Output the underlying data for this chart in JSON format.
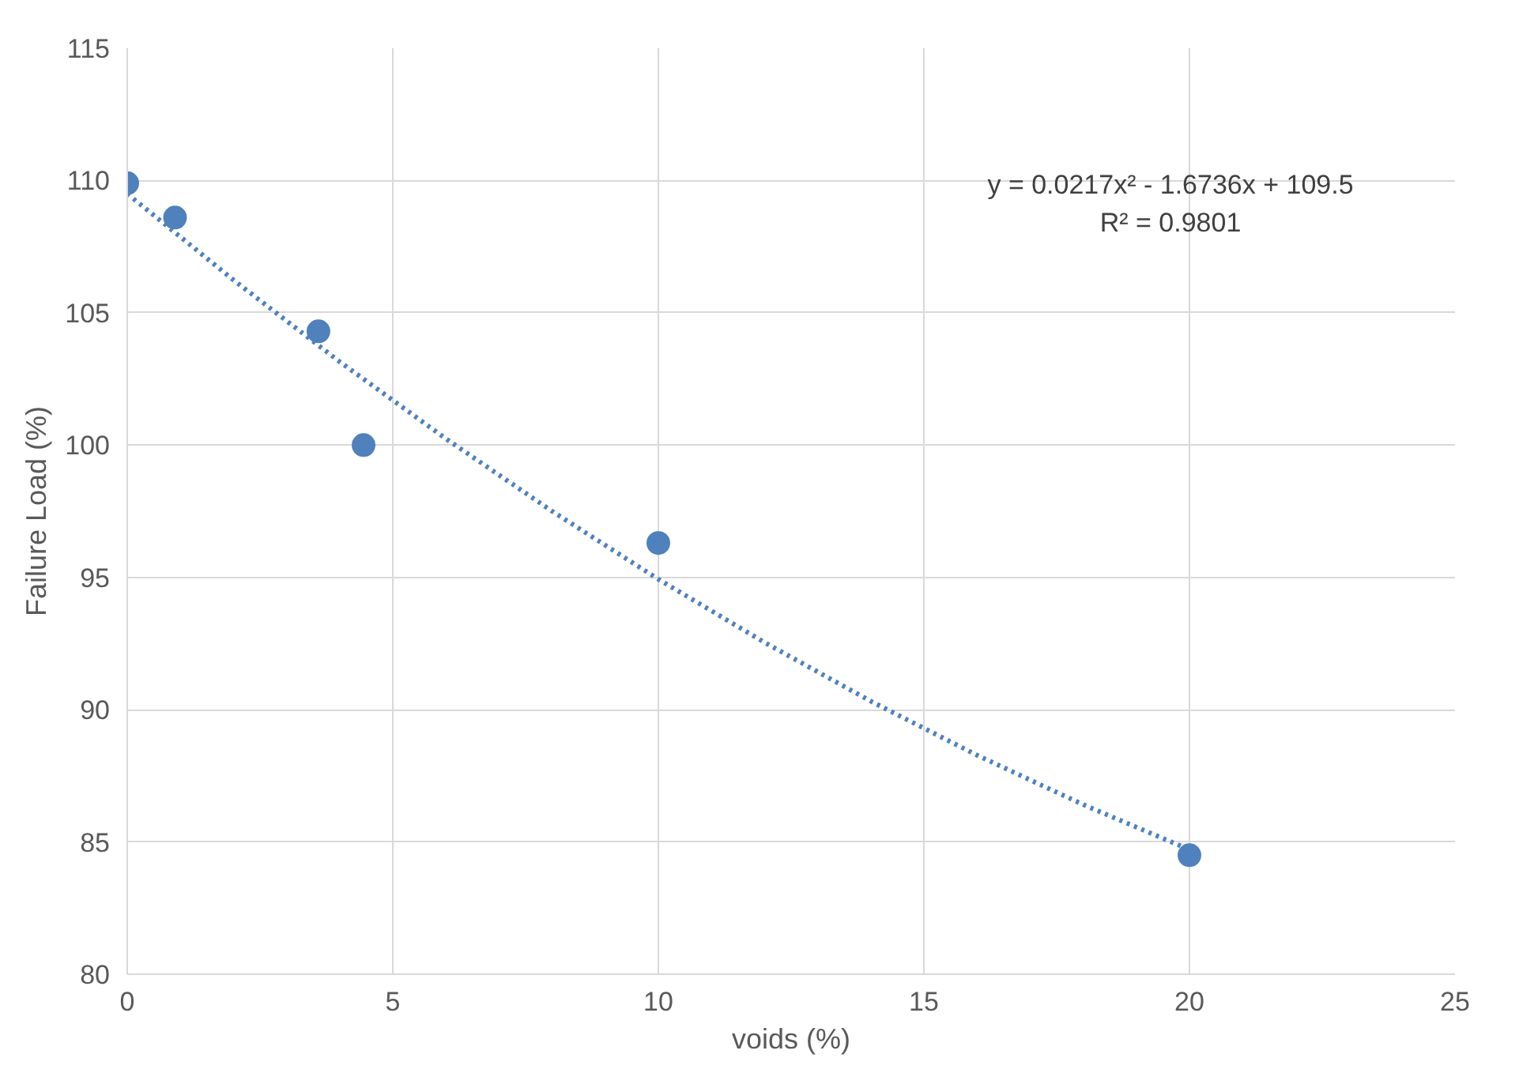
{
  "chart_data": {
    "type": "scatter",
    "xlabel": "voids (%)",
    "ylabel": "Failure Load (%)",
    "xlim": [
      0,
      25
    ],
    "xticks": [
      0,
      5,
      10,
      15,
      20,
      25
    ],
    "ylim": [
      80,
      115
    ],
    "yticks": [
      80,
      85,
      90,
      95,
      100,
      105,
      110,
      115
    ],
    "grid": true,
    "series": [
      {
        "marker": "circle",
        "color": "#4f81bd",
        "x": [
          0,
          0.9,
          3.6,
          4.45,
          10,
          20
        ],
        "values": [
          109.9,
          108.6,
          104.3,
          100.0,
          96.3,
          84.5
        ]
      },
      {
        "type": "line",
        "marker": "none",
        "line_style": "dotted",
        "color": "#4f81bd",
        "x": [
          0,
          2,
          4,
          6,
          8,
          10,
          12,
          14,
          16,
          18,
          20
        ],
        "values": [
          109.5,
          106.24,
          103.15,
          100.24,
          97.5,
          94.93,
          92.54,
          90.32,
          88.28,
          86.41,
          84.71
        ]
      }
    ],
    "annotations": [
      "y = 0.0217x² - 1.6736x + 109.5",
      "R² = 0.9801"
    ]
  }
}
